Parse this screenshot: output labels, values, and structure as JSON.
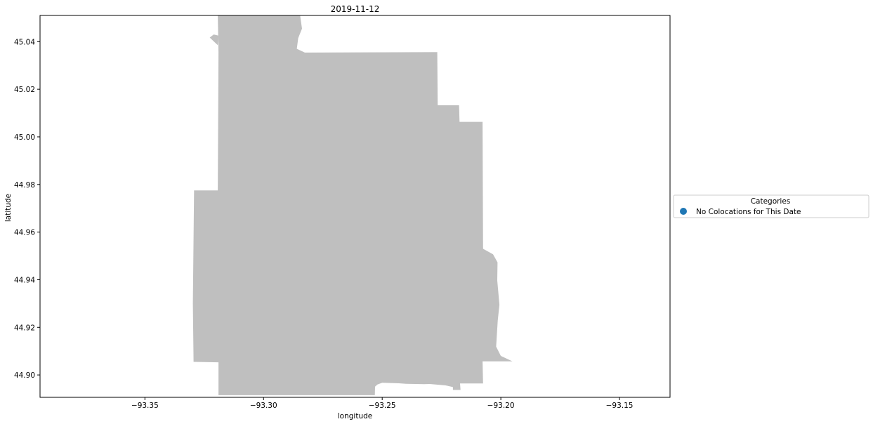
{
  "chart_data": {
    "type": "map",
    "title": "2019-11-12",
    "xlabel": "longitude",
    "ylabel": "latitude",
    "xlim": [
      -93.3942,
      -93.1287
    ],
    "ylim": [
      44.8906,
      45.051
    ],
    "x_ticks": [
      {
        "value": -93.35,
        "label": "−93.35"
      },
      {
        "value": -93.3,
        "label": "−93.30"
      },
      {
        "value": -93.25,
        "label": "−93.25"
      },
      {
        "value": -93.2,
        "label": "−93.20"
      },
      {
        "value": -93.15,
        "label": "−93.15"
      }
    ],
    "y_ticks": [
      {
        "value": 44.9,
        "label": "44.90"
      },
      {
        "value": 44.92,
        "label": "44.92"
      },
      {
        "value": 44.94,
        "label": "44.94"
      },
      {
        "value": 44.96,
        "label": "44.96"
      },
      {
        "value": 44.98,
        "label": "44.98"
      },
      {
        "value": 45.0,
        "label": "45.00"
      },
      {
        "value": 45.02,
        "label": "45.02"
      },
      {
        "value": 45.04,
        "label": "45.04"
      }
    ],
    "grid": false,
    "shape_color": "#bfbfbf",
    "boundary": [
      [
        -93.3193,
        45.051
      ],
      [
        -93.2846,
        45.051
      ],
      [
        -93.2838,
        45.0455
      ],
      [
        -93.2854,
        45.0415
      ],
      [
        -93.286,
        45.037
      ],
      [
        -93.2826,
        45.0354
      ],
      [
        -93.2268,
        45.0356
      ],
      [
        -93.2266,
        45.0133
      ],
      [
        -93.2176,
        45.0133
      ],
      [
        -93.2174,
        45.0063
      ],
      [
        -93.2077,
        45.0063
      ],
      [
        -93.2075,
        44.953
      ],
      [
        -93.2033,
        44.9507
      ],
      [
        -93.2014,
        44.9473
      ],
      [
        -93.2015,
        44.9397
      ],
      [
        -93.2006,
        44.9295
      ],
      [
        -93.2013,
        44.9228
      ],
      [
        -93.202,
        44.9119
      ],
      [
        -93.2,
        44.908
      ],
      [
        -93.1951,
        44.9057
      ],
      [
        -93.2077,
        44.9057
      ],
      [
        -93.2075,
        44.8964
      ],
      [
        -93.2172,
        44.8964
      ],
      [
        -93.217,
        44.8937
      ],
      [
        -93.2202,
        44.8937
      ],
      [
        -93.2202,
        44.8949
      ],
      [
        -93.2233,
        44.8956
      ],
      [
        -93.23,
        44.8962
      ],
      [
        -93.2322,
        44.8961
      ],
      [
        -93.24,
        44.8963
      ],
      [
        -93.243,
        44.8965
      ],
      [
        -93.25,
        44.8967
      ],
      [
        -93.252,
        44.896
      ],
      [
        -93.253,
        44.8951
      ],
      [
        -93.2531,
        44.8915
      ],
      [
        -93.319,
        44.8915
      ],
      [
        -93.319,
        44.9053
      ],
      [
        -93.3295,
        44.9055
      ],
      [
        -93.3298,
        44.93
      ],
      [
        -93.3293,
        44.9775
      ],
      [
        -93.3193,
        44.9775
      ],
      [
        -93.319,
        45.0355
      ],
      [
        -93.3193,
        45.051
      ]
    ],
    "notch": [
      [
        -93.3193,
        45.0385
      ],
      [
        -93.3227,
        45.0417
      ],
      [
        -93.321,
        45.043
      ],
      [
        -93.319,
        45.0425
      ]
    ],
    "legend": {
      "title": "Categories",
      "placement": "right",
      "entries": [
        {
          "label": "No Colocations for This Date",
          "color": "#1f77b4"
        }
      ]
    }
  }
}
